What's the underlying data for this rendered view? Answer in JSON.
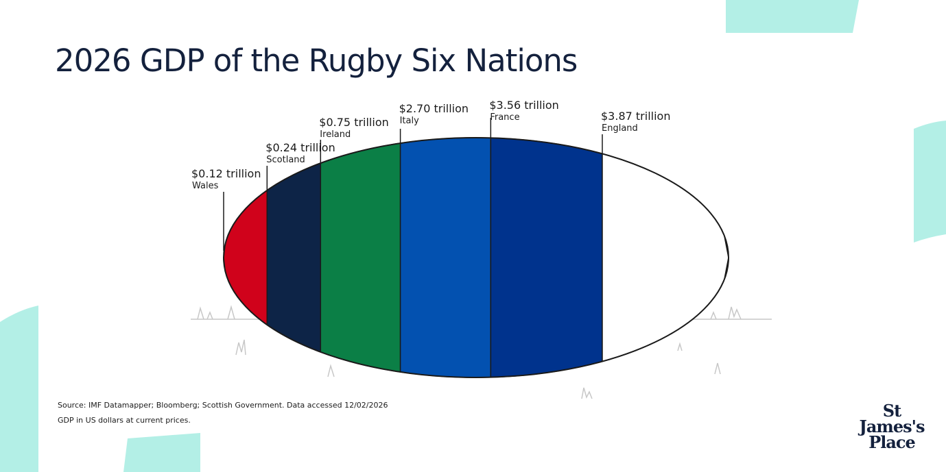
{
  "page": {
    "title": "2026 GDP of the Rugby Six Nations",
    "source_line1": "Source: IMF Datamapper; Bloomberg; Scottish Government. Data accessed 12/02/2026",
    "source_line2": "GDP in US dollars at current prices.",
    "logo": {
      "line1": "St",
      "line2": "James's",
      "line3": "Place"
    },
    "decor_color": "#b3efe6",
    "ellipse_outline": "#1a1a1a"
  },
  "chart_data": {
    "type": "bar",
    "title": "2026 GDP of the Rugby Six Nations",
    "unit": "trillion US dollars",
    "categories": [
      "Wales",
      "Scotland",
      "Ireland",
      "Italy",
      "France",
      "England"
    ],
    "values": [
      0.12,
      0.24,
      0.75,
      2.7,
      3.56,
      3.87
    ],
    "value_labels": [
      "$0.12 trillion",
      "$0.24 trillion",
      "$0.75 trillion",
      "$2.70 trillion",
      "$3.56 trillion",
      "$3.87 trillion"
    ],
    "colors": [
      "#d0021b",
      "#0d2447",
      "#0b7f46",
      "#0351b0",
      "#00338d",
      "#ffffff"
    ]
  }
}
